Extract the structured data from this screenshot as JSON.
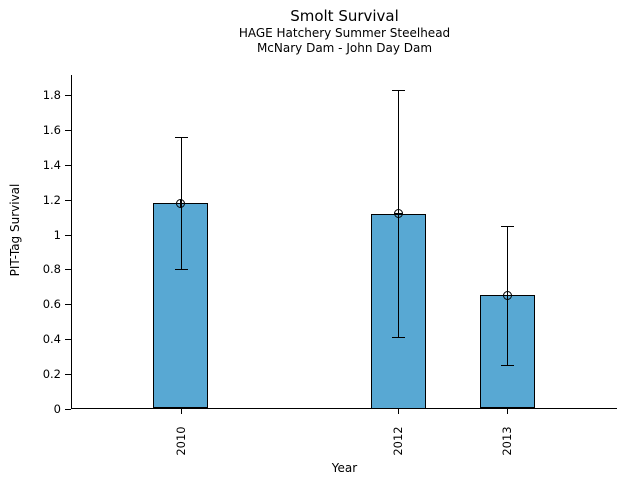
{
  "chart_data": {
    "type": "bar",
    "title": "Smolt Survival",
    "subtitle1": "HAGE Hatchery Summer Steelhead",
    "subtitle2": "McNary Dam - John Day Dam",
    "xlabel": "Year",
    "ylabel": "PIT-Tag Survival",
    "categories": [
      "2010",
      "2012",
      "2013"
    ],
    "x_years": [
      2010,
      2012,
      2013
    ],
    "values": [
      1.18,
      1.12,
      0.65
    ],
    "error_bars": {
      "upper": [
        1.56,
        1.83,
        1.05
      ],
      "lower": [
        0.8,
        0.41,
        0.25
      ]
    },
    "yticks": {
      "values": [
        0,
        0.2,
        0.4,
        0.6,
        0.8,
        1.0,
        1.2,
        1.4,
        1.6,
        1.8
      ],
      "labels": [
        "0",
        "0.2",
        "0.4",
        "0.6",
        "0.8",
        "1",
        "1.2",
        "1.4",
        "1.6",
        "1.8"
      ]
    },
    "xlim": [
      2009,
      2014
    ],
    "ylim": [
      0,
      1.92
    ],
    "grid": false,
    "legend": null,
    "marker": "circle-plus",
    "bar_color": "#58a8d3",
    "bar_edge_color": "#000000",
    "error_color": "#000000",
    "text_color": "#000000"
  }
}
